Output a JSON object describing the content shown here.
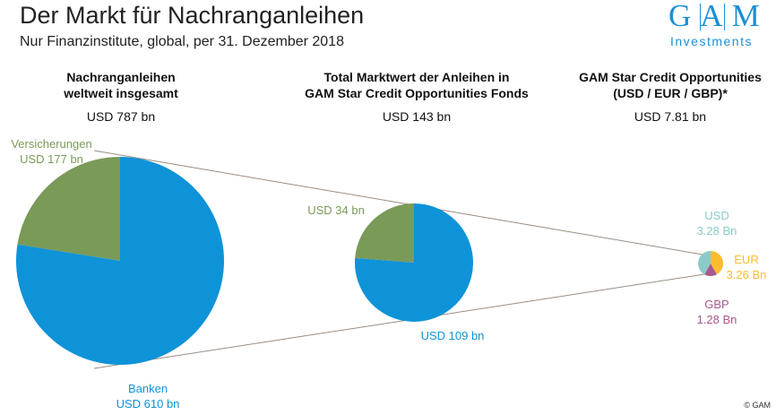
{
  "title": "Der Markt für Nachranganleihen",
  "subtitle": "Nur Finanzinstitute, global, per 31. Dezember 2018",
  "logo": {
    "letters": [
      "G",
      "A",
      "M"
    ],
    "sub": "Investments"
  },
  "copyright": "© GAM",
  "chart_data": [
    {
      "type": "pie",
      "title_lines": [
        "Nachranganleihen",
        "weltweit insgesamt"
      ],
      "total": "USD 787 bn",
      "slices": [
        {
          "name": "Versicherungen",
          "label": "USD 177 bn",
          "value": 177,
          "color": "#7a9a58"
        },
        {
          "name": "Banken",
          "label": "USD 610 bn",
          "value": 610,
          "color": "#0f93d8"
        }
      ]
    },
    {
      "type": "pie",
      "title_lines": [
        "Total Marktwert der Anleihen in",
        "GAM Star Credit Opportunities Fonds"
      ],
      "total": "USD 143 bn",
      "slices": [
        {
          "label": "USD 34 bn",
          "value": 34,
          "color": "#7a9a58"
        },
        {
          "label": "USD 109 bn",
          "value": 109,
          "color": "#0f93d8"
        }
      ]
    },
    {
      "type": "pie",
      "title_lines": [
        "GAM Star Credit Opportunities",
        "(USD / EUR / GBP)*"
      ],
      "total": "USD 7.81 bn",
      "slices": [
        {
          "name": "EUR",
          "label": "3.26 Bn",
          "value": 3.26,
          "color": "#fbbd2e"
        },
        {
          "name": "GBP",
          "label": "1.28 Bn",
          "value": 1.28,
          "color": "#a8588e"
        },
        {
          "name": "USD",
          "label": "3.28 Bn",
          "value": 3.28,
          "color": "#8acbc9"
        }
      ]
    }
  ]
}
